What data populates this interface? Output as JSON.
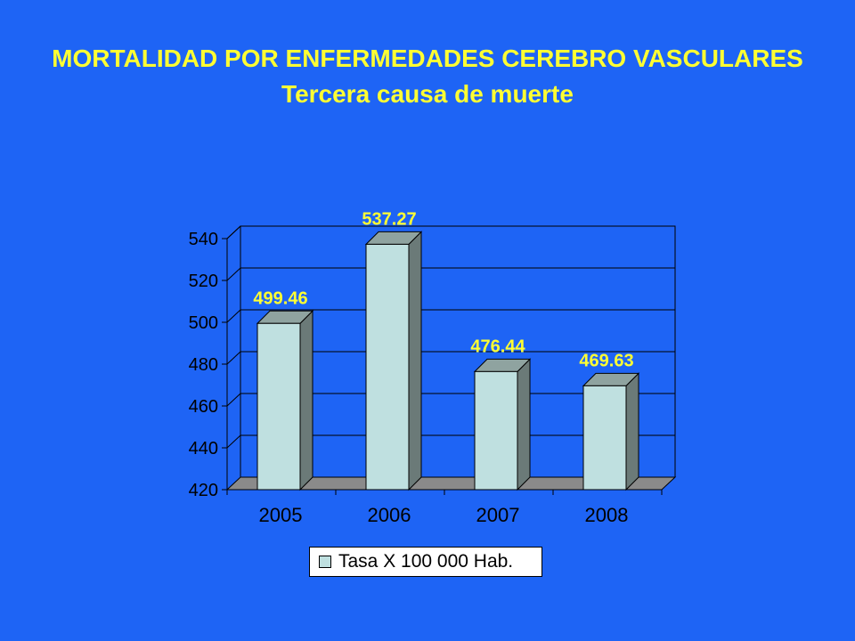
{
  "slide": {
    "title_line1": "MORTALIDAD POR ENFERMEDADES CEREBRO VASCULARES",
    "title_line2": "Tercera causa de muerte"
  },
  "colors": {
    "background": "#1E64F5",
    "title": "#FFFF33",
    "bar_front": "#BFE0E0",
    "bar_side": "#6B7A78",
    "floor": "#8A8A8A",
    "data_label": "#FFFF33"
  },
  "chart_data": {
    "type": "bar",
    "categories": [
      "2005",
      "2006",
      "2007",
      "2008"
    ],
    "series": [
      {
        "name": "Tasa X 100 000 Hab.",
        "values": [
          499.46,
          537.27,
          476.44,
          469.63
        ]
      }
    ],
    "data_labels": [
      "499.46",
      "537.27",
      "476.44",
      "469.63"
    ],
    "ylim": [
      420,
      540
    ],
    "yticks": [
      420,
      440,
      460,
      480,
      500,
      520,
      540
    ],
    "grid": true,
    "legend": "bottom",
    "three_d": true
  }
}
